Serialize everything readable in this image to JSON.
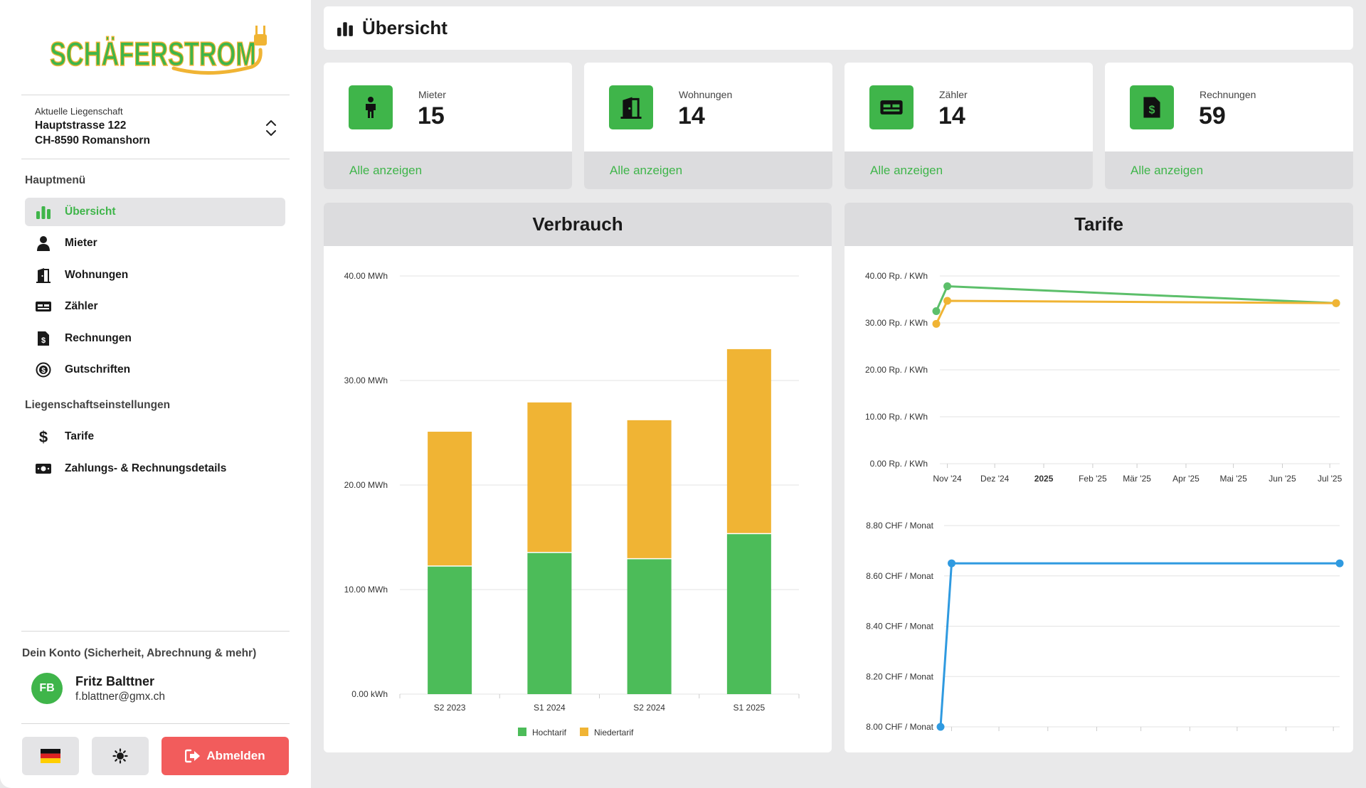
{
  "brand": {
    "logo_text": "SCHÄFERSTROM",
    "green": "#3fb54a",
    "orange": "#f0b434",
    "blue": "#2f9ae0",
    "red": "#f25c5c"
  },
  "property": {
    "caption": "Aktuelle Liegenschaft",
    "line1": "Hauptstrasse 122",
    "line2": "CH-8590 Romanshorn"
  },
  "sidebar": {
    "main_title": "Hauptmenü",
    "items": [
      {
        "label": "Übersicht",
        "icon": "bar-chart-icon",
        "active": true
      },
      {
        "label": "Mieter",
        "icon": "person-icon"
      },
      {
        "label": "Wohnungen",
        "icon": "door-icon"
      },
      {
        "label": "Zähler",
        "icon": "meter-icon"
      },
      {
        "label": "Rechnungen",
        "icon": "invoice-icon"
      },
      {
        "label": "Gutschriften",
        "icon": "credit-coin-icon"
      }
    ],
    "settings_title": "Liegenschaftseinstellungen",
    "settings_items": [
      {
        "label": "Tarife",
        "icon": "dollar-icon"
      },
      {
        "label": "Zahlungs- & Rechnungsdetails",
        "icon": "money-bill-icon"
      }
    ]
  },
  "account": {
    "title": "Dein Konto (Sicherheit, Abrechnung & mehr)",
    "initials": "FB",
    "name": "Fritz Balttner",
    "email": "f.blattner@gmx.ch",
    "logout_label": "Abmelden"
  },
  "header": {
    "title": "Übersicht",
    "icon": "bar-chart-icon"
  },
  "stats": [
    {
      "label": "Mieter",
      "value": "15",
      "link": "Alle anzeigen",
      "icon": "person-icon"
    },
    {
      "label": "Wohnungen",
      "value": "14",
      "link": "Alle anzeigen",
      "icon": "door-icon"
    },
    {
      "label": "Zähler",
      "value": "14",
      "link": "Alle anzeigen",
      "icon": "meter-icon"
    },
    {
      "label": "Rechnungen",
      "value": "59",
      "link": "Alle anzeigen",
      "icon": "invoice-icon"
    }
  ],
  "chart_data": [
    {
      "type": "bar",
      "title": "Verbrauch",
      "stacked": true,
      "categories": [
        "S2 2023",
        "S1 2024",
        "S2 2024",
        "S1 2025"
      ],
      "series": [
        {
          "name": "Hochtarif",
          "values": [
            12.2,
            13.5,
            12.9,
            15.3
          ],
          "color": "#4cbc59"
        },
        {
          "name": "Niedertarif",
          "values": [
            12.9,
            14.4,
            13.3,
            17.7
          ],
          "color": "#f0b434"
        }
      ],
      "ylim": [
        0,
        40
      ],
      "yticks": [
        "0.00 kWh",
        "10.00 MWh",
        "20.00 MWh",
        "30.00 MWh",
        "40.00 MWh"
      ],
      "grid": true,
      "legend": "bottom"
    },
    {
      "type": "line",
      "title": "Tarife",
      "x": [
        "2024-10-25",
        "2024-11-01",
        "2025-07-05"
      ],
      "series": [
        {
          "values": [
            32.5,
            37.8,
            34.2
          ],
          "color": "#5cbf6a"
        },
        {
          "values": [
            29.8,
            34.7,
            34.2
          ],
          "color": "#f0b434"
        }
      ],
      "ylim": [
        0,
        40
      ],
      "yticks": [
        "0.00 Rp. / KWh",
        "10.00 Rp. / KWh",
        "20.00 Rp. / KWh",
        "30.00 Rp. / KWh",
        "40.00 Rp. / KWh"
      ],
      "xticks": [
        "Nov '24",
        "Dez '24",
        "2025",
        "Feb '25",
        "Mär '25",
        "Apr '25",
        "Mai '25",
        "Jun '25",
        "Jul '25"
      ],
      "grid": true
    },
    {
      "type": "line",
      "x": [
        "2024-10-25",
        "2024-11-01",
        "2025-07-05"
      ],
      "series": [
        {
          "values": [
            8.0,
            8.65,
            8.65
          ],
          "color": "#2f9ae0"
        }
      ],
      "ylim": [
        8.0,
        8.8
      ],
      "yticks": [
        "8.00 CHF / Monat",
        "8.20 CHF / Monat",
        "8.40 CHF / Monat",
        "8.60 CHF / Monat",
        "8.80 CHF / Monat"
      ],
      "grid": true
    }
  ]
}
